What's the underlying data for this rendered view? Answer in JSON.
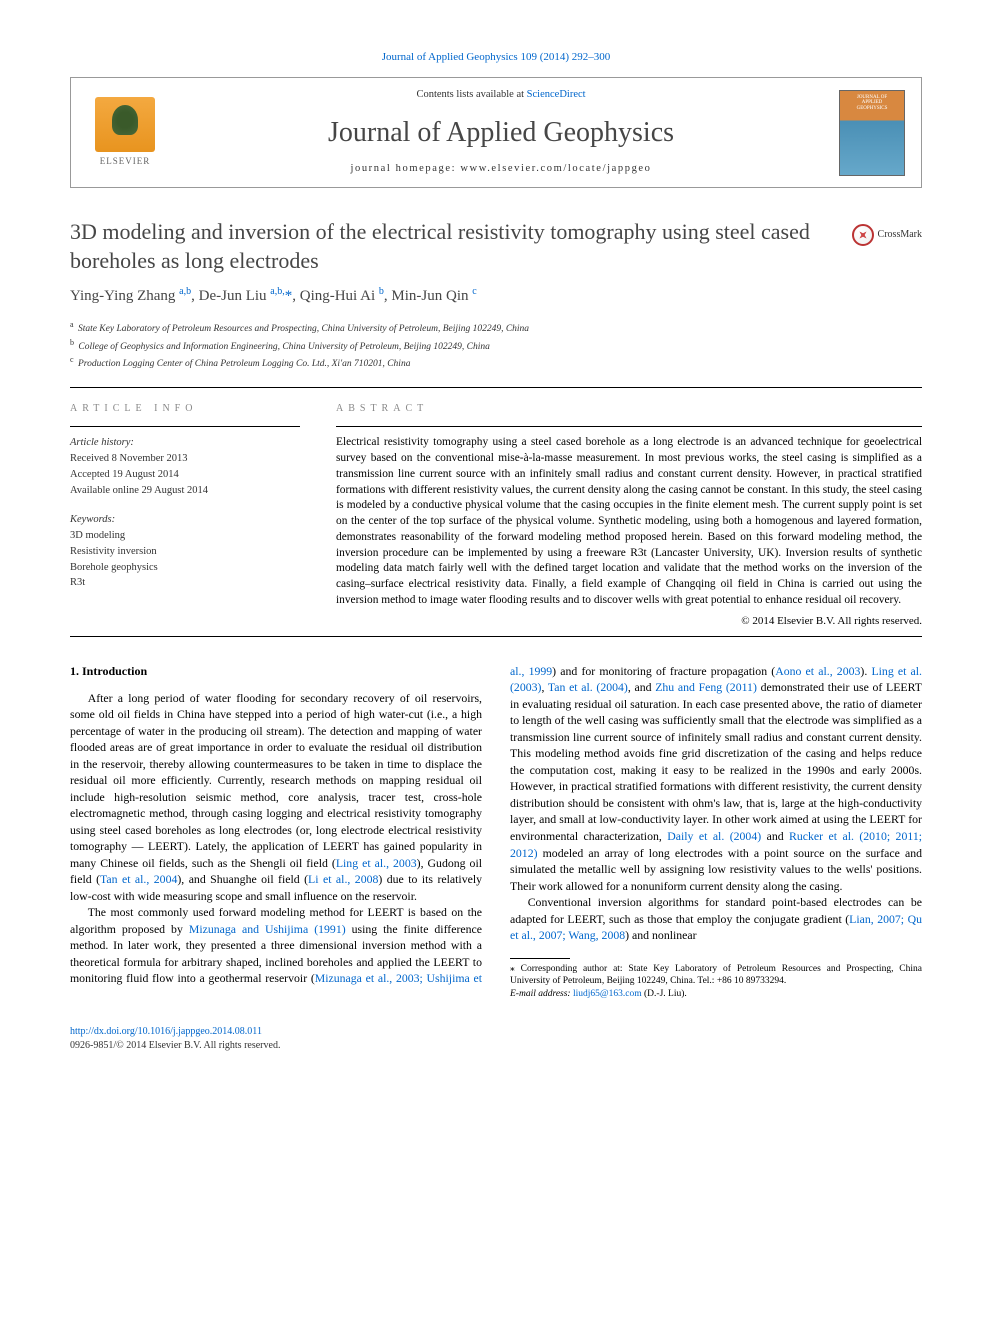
{
  "header": {
    "citation": "Journal of Applied Geophysics 109 (2014) 292–300",
    "contents_prefix": "Contents lists available at ",
    "contents_link": "ScienceDirect",
    "journal_name": "Journal of Applied Geophysics",
    "homepage_label": "journal homepage: www.elsevier.com/locate/jappgeo",
    "elsevier_label": "ELSEVIER",
    "cover_text1": "JOURNAL OF",
    "cover_text2": "APPLIED",
    "cover_text3": "GEOPHYSICS"
  },
  "title": "3D modeling and inversion of the electrical resistivity tomography using steel cased boreholes as long electrodes",
  "crossmark_label": "CrossMark",
  "authors_html": "Ying-Ying Zhang <sup>a,b</sup>, De-Jun Liu <sup>a,b,</sup><span class='star'>*</span>, Qing-Hui Ai <sup>b</sup>, Min-Jun Qin <sup>c</sup>",
  "affiliations": {
    "a": "State Key Laboratory of Petroleum Resources and Prospecting, China University of Petroleum, Beijing 102249, China",
    "b": "College of Geophysics and Information Engineering, China University of Petroleum, Beijing 102249, China",
    "c": "Production Logging Center of China Petroleum Logging Co. Ltd., Xi'an 710201, China"
  },
  "article_info": {
    "label": "article info",
    "history_hdr": "Article history:",
    "received": "Received 8 November 2013",
    "accepted": "Accepted 19 August 2014",
    "online": "Available online 29 August 2014",
    "keywords_hdr": "Keywords:",
    "kw1": "3D modeling",
    "kw2": "Resistivity inversion",
    "kw3": "Borehole geophysics",
    "kw4": "R3t"
  },
  "abstract": {
    "label": "abstract",
    "text": "Electrical resistivity tomography using a steel cased borehole as a long electrode is an advanced technique for geoelectrical survey based on the conventional mise-à-la-masse measurement. In most previous works, the steel casing is simplified as a transmission line current source with an infinitely small radius and constant current density. However, in practical stratified formations with different resistivity values, the current density along the casing cannot be constant. In this study, the steel casing is modeled by a conductive physical volume that the casing occupies in the finite element mesh. The current supply point is set on the center of the top surface of the physical volume. Synthetic modeling, using both a homogenous and layered formation, demonstrates reasonability of the forward modeling method proposed herein. Based on this forward modeling method, the inversion procedure can be implemented by using a freeware R3t (Lancaster University, UK). Inversion results of synthetic modeling data match fairly well with the defined target location and validate that the method works on the inversion of the casing–surface electrical resistivity data. Finally, a field example of Changqing oil field in China is carried out using the inversion method to image water flooding results and to discover wells with great potential to enhance residual oil recovery.",
    "copyright": "© 2014 Elsevier B.V. All rights reserved."
  },
  "intro": {
    "heading": "1. Introduction",
    "p1a": "After a long period of water flooding for secondary recovery of oil reservoirs, some old oil fields in China have stepped into a period of high water-cut (i.e., a high percentage of water in the producing oil stream). The detection and mapping of water flooded areas are of great importance in order to evaluate the residual oil distribution in the reservoir, thereby allowing countermeasures to be taken in time to displace the residual oil more efficiently. Currently, research methods on mapping residual oil include high-resolution seismic method, core analysis, tracer test, cross-hole electromagnetic method, through casing logging and electrical resistivity tomography using steel cased boreholes as long electrodes (or, long electrode electrical resistivity tomography — LEERT). Lately, the application of LEERT has gained popularity in many Chinese oil fields, such as the Shengli oil field (",
    "p1_link1": "Ling et al., 2003",
    "p1b": "), Gudong oil field (",
    "p1_link2": "Tan et al., 2004",
    "p1c": "), and Shuanghe oil field (",
    "p1_link3": "Li et al., 2008",
    "p1d": ") due to its relatively low-cost with wide measuring scope and small influence on the reservoir.",
    "p2a": "The most commonly used forward modeling method for LEERT is based on the algorithm proposed by ",
    "p2_link1": "Mizunaga and Ushijima (1991)",
    "p2b": " using the finite difference method. In later work, they presented a three dimensional inversion method with a theoretical formula for arbitrary shaped, inclined boreholes and applied the LEERT to monitoring fluid flow into a geothermal reservoir (",
    "p2_link2": "Mizunaga et al., 2003; Ushijima et al., 1999",
    "p2c": ") and for monitoring of fracture propagation (",
    "p2_link3": "Aono et al., 2003",
    "p2d": "). ",
    "p2_link4": "Ling et al. (2003)",
    "p2e": ", ",
    "p2_link5": "Tan et al. (2004)",
    "p2f": ", and ",
    "p2_link6": "Zhu and Feng (2011)",
    "p2g": " demonstrated their use of LEERT in evaluating residual oil saturation. In each case presented above, the ratio of diameter to length of the well casing was sufficiently small that the electrode was simplified as a transmission line current source of infinitely small radius and constant current density. This modeling method avoids fine grid discretization of the casing and helps reduce the computation cost, making it easy to be realized in the 1990s and early 2000s. However, in practical stratified formations with different resistivity, the current density distribution should be consistent with ohm's law, that is, large at the high-conductivity layer, and small at low-conductivity layer. In other work aimed at using the LEERT for environmental characterization, ",
    "p2_link7": "Daily et al. (2004)",
    "p2h": " and ",
    "p2_link8": "Rucker et al. (2010; 2011; 2012)",
    "p2i": " modeled an array of long electrodes with a point source on the surface and simulated the metallic well by assigning low resistivity values to the wells' positions. Their work allowed for a nonuniform current density along the casing.",
    "p3a": "Conventional inversion algorithms for standard point-based electrodes can be adapted for LEERT, such as those that employ the conjugate gradient (",
    "p3_link1": "Lian, 2007; Qu et al., 2007; Wang, 2008",
    "p3b": ") and nonlinear"
  },
  "footnote": {
    "corr_label": "⁎ Corresponding author at: State Key Laboratory of Petroleum Resources and Prospecting, China University of Petroleum, Beijing 102249, China. Tel.: +86 10 89733294.",
    "email_label": "E-mail address: ",
    "email": "liudj65@163.com",
    "email_suffix": " (D.-J. Liu)."
  },
  "footer": {
    "doi": "http://dx.doi.org/10.1016/j.jappgeo.2014.08.011",
    "issn_line": "0926-9851/© 2014 Elsevier B.V. All rights reserved."
  },
  "colors": {
    "link": "#0066cc",
    "heading": "#464646",
    "body": "#000000",
    "muted": "#888888"
  }
}
